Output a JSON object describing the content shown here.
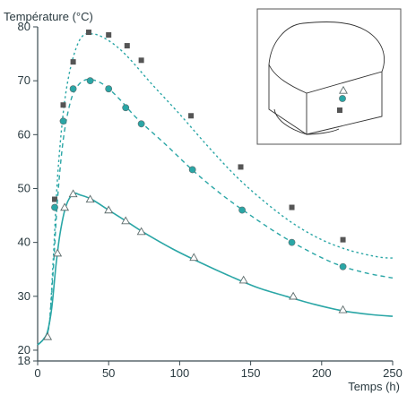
{
  "chart_data": {
    "type": "line",
    "title": "",
    "ylabel": "Température (°C)",
    "xlabel": "Temps (h)",
    "xlim": [
      0,
      250
    ],
    "ylim": [
      18,
      80
    ],
    "xticks": [
      0,
      50,
      100,
      150,
      200,
      250
    ],
    "yticks": [
      18,
      20,
      30,
      40,
      50,
      60,
      70,
      80
    ],
    "x_tick_labels": [
      "0",
      "50",
      "100",
      "150",
      "200",
      "250"
    ],
    "y_tick_labels": [
      "18",
      "20",
      "30",
      "40",
      "50",
      "60",
      "70",
      "80"
    ],
    "grid": false,
    "legend": "none",
    "colors": {
      "primary": "#2aa6a6",
      "squares": "#555555",
      "axis": "#3a4a50"
    },
    "series": [
      {
        "marker": "square",
        "line": "dotted",
        "points": [
          [
            12,
            48
          ],
          [
            18,
            65.5
          ],
          [
            25,
            73.5
          ],
          [
            36,
            79
          ],
          [
            50,
            78.5
          ],
          [
            63,
            76.5
          ],
          [
            73,
            73.8
          ],
          [
            108,
            63.5
          ],
          [
            143,
            54
          ],
          [
            179,
            46.5
          ],
          [
            215,
            40.5
          ]
        ],
        "curve": [
          [
            0,
            21
          ],
          [
            4,
            22
          ],
          [
            8,
            24.5
          ],
          [
            11,
            37
          ],
          [
            14,
            52
          ],
          [
            18,
            64
          ],
          [
            22,
            71
          ],
          [
            27,
            76
          ],
          [
            32,
            78.4
          ],
          [
            38,
            78.7
          ],
          [
            45,
            78.2
          ],
          [
            55,
            76.5
          ],
          [
            65,
            74
          ],
          [
            80,
            69.5
          ],
          [
            100,
            63.8
          ],
          [
            120,
            57.8
          ],
          [
            140,
            52.2
          ],
          [
            160,
            47.5
          ],
          [
            180,
            43.5
          ],
          [
            200,
            40.5
          ],
          [
            220,
            38.5
          ],
          [
            240,
            37.3
          ],
          [
            250,
            37.1
          ]
        ]
      },
      {
        "marker": "circle",
        "line": "dashed",
        "points": [
          [
            12,
            46.5
          ],
          [
            18,
            62.5
          ],
          [
            25,
            68.5
          ],
          [
            37,
            70
          ],
          [
            50,
            68.5
          ],
          [
            62,
            65
          ],
          [
            73,
            62
          ],
          [
            109,
            53.5
          ],
          [
            144,
            46
          ],
          [
            179,
            40
          ],
          [
            215,
            35.5
          ]
        ],
        "curve": [
          [
            0,
            21
          ],
          [
            4,
            22
          ],
          [
            8,
            24.5
          ],
          [
            11,
            35
          ],
          [
            14,
            48
          ],
          [
            18,
            59
          ],
          [
            23,
            66
          ],
          [
            28,
            69
          ],
          [
            34,
            70.2
          ],
          [
            40,
            70.1
          ],
          [
            48,
            69
          ],
          [
            58,
            66.5
          ],
          [
            70,
            63
          ],
          [
            90,
            58.2
          ],
          [
            110,
            53.2
          ],
          [
            130,
            48.8
          ],
          [
            150,
            45
          ],
          [
            170,
            41.5
          ],
          [
            190,
            38.5
          ],
          [
            210,
            36
          ],
          [
            230,
            34.4
          ],
          [
            250,
            33.4
          ]
        ]
      },
      {
        "marker": "triangle",
        "line": "solid",
        "points": [
          [
            7,
            22.5
          ],
          [
            14,
            38
          ],
          [
            19,
            46.5
          ],
          [
            25,
            49
          ],
          [
            37,
            48
          ],
          [
            50,
            46
          ],
          [
            62,
            44
          ],
          [
            73,
            42
          ],
          [
            110,
            37.2
          ],
          [
            145,
            33
          ],
          [
            180,
            30
          ],
          [
            215,
            27.5
          ]
        ],
        "curve": [
          [
            0,
            21
          ],
          [
            4,
            22
          ],
          [
            7,
            23.5
          ],
          [
            10,
            28
          ],
          [
            13,
            36
          ],
          [
            16,
            42
          ],
          [
            20,
            46.8
          ],
          [
            25,
            49
          ],
          [
            30,
            48.8
          ],
          [
            38,
            48
          ],
          [
            50,
            46
          ],
          [
            62,
            44
          ],
          [
            75,
            41.8
          ],
          [
            95,
            38.8
          ],
          [
            115,
            36.2
          ],
          [
            135,
            33.8
          ],
          [
            155,
            31.6
          ],
          [
            175,
            30
          ],
          [
            195,
            28.5
          ],
          [
            215,
            27.3
          ],
          [
            235,
            26.6
          ],
          [
            250,
            26.3
          ]
        ]
      }
    ]
  }
}
